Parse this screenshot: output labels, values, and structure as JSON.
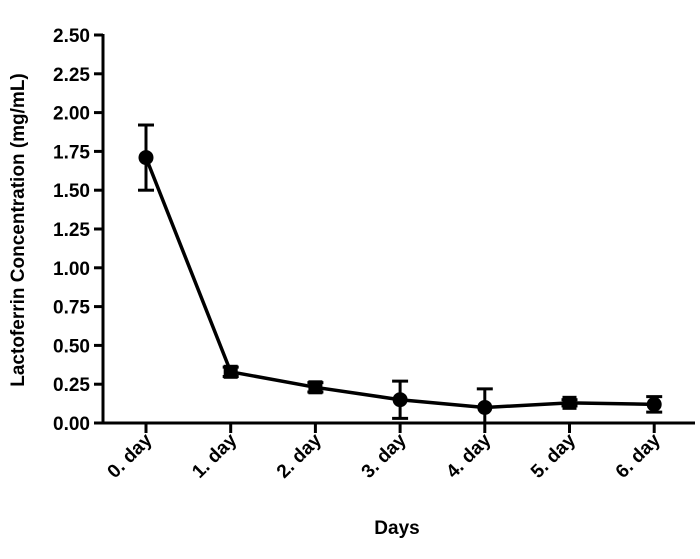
{
  "chart_data": {
    "type": "line",
    "title": "",
    "xlabel": "Days",
    "ylabel": "Lactoferrin Concentration (mg/mL)",
    "categories": [
      "0. day",
      "1. day",
      "2. day",
      "3. day",
      "4. day",
      "5. day",
      "6. day"
    ],
    "yticks": [
      "0.00",
      "0.25",
      "0.50",
      "0.75",
      "1.00",
      "1.25",
      "1.50",
      "1.75",
      "2.00",
      "2.25",
      "2.50"
    ],
    "ylim": [
      0,
      2.5
    ],
    "grid": false,
    "series": [
      {
        "values": [
          1.71,
          0.33,
          0.23,
          0.15,
          0.1,
          0.13,
          0.12
        ],
        "error": [
          0.21,
          0.03,
          0.03,
          0.12,
          0.12,
          0.02,
          0.05
        ],
        "markers": [
          "circle",
          "square",
          "square",
          "circle",
          "circle",
          "square",
          "circle"
        ],
        "color": "#000000"
      }
    ]
  }
}
